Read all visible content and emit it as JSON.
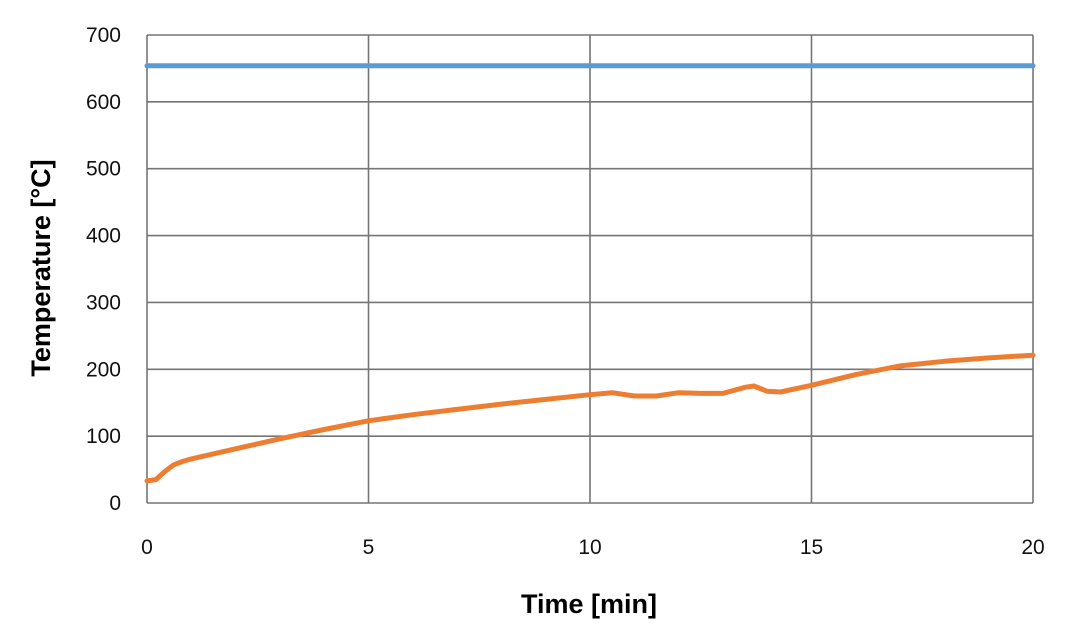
{
  "chart_data": {
    "type": "line",
    "title": "",
    "xlabel": "Time [min]",
    "ylabel": "Temperature [°C]",
    "xlim": [
      0,
      20
    ],
    "ylim": [
      0,
      700
    ],
    "x_ticks": [
      0,
      5,
      10,
      15,
      20
    ],
    "y_ticks": [
      0,
      100,
      200,
      300,
      400,
      500,
      600,
      700
    ],
    "grid": true,
    "legend": "none",
    "series": [
      {
        "color": "#5b9bd5",
        "x": [
          0,
          20
        ],
        "y": [
          654,
          654
        ]
      },
      {
        "color": "#ed7d31",
        "x": [
          0,
          0.2,
          0.4,
          0.6,
          0.8,
          1,
          2,
          3,
          4,
          5,
          6,
          7,
          8,
          9,
          10,
          10.5,
          11,
          11.5,
          12,
          12.5,
          13,
          13.5,
          13.7,
          14,
          14.3,
          15,
          16,
          17,
          18,
          19,
          20
        ],
        "y": [
          33,
          35,
          47,
          57,
          62,
          66,
          81,
          96,
          110,
          123,
          132,
          140,
          148,
          155,
          162,
          165,
          160,
          160,
          165,
          164,
          164,
          173,
          175,
          167,
          166,
          176,
          192,
          205,
          212,
          217,
          221
        ]
      }
    ]
  }
}
